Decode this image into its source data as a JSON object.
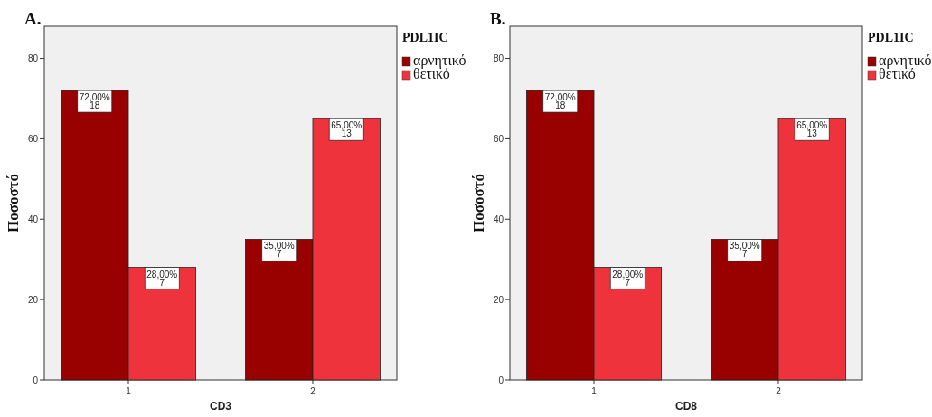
{
  "chart_data": [
    {
      "type": "bar",
      "title": "A.",
      "xlabel": "CD3",
      "ylabel": "Ποσοστό",
      "legend_title": "PDL1IC",
      "legend": "right",
      "categories": [
        "1",
        "2"
      ],
      "ylim": [
        0,
        88
      ],
      "yticks": [
        0,
        20,
        40,
        60,
        80
      ],
      "series": [
        {
          "name": "αρνητικό",
          "color": "#990000",
          "values": [
            72,
            35
          ],
          "value_labels": [
            "72,00%\n18",
            "35,00%\n7"
          ]
        },
        {
          "name": "θετικό",
          "color": "#ee333d",
          "values": [
            28,
            65
          ],
          "value_labels": [
            "28,00%\n7",
            "65,00%\n13"
          ]
        }
      ]
    },
    {
      "type": "bar",
      "title": "B.",
      "xlabel": "CD8",
      "ylabel": "Ποσοστό",
      "legend_title": "PDL1IC",
      "legend": "right",
      "categories": [
        "1",
        "2"
      ],
      "ylim": [
        0,
        88
      ],
      "yticks": [
        0,
        20,
        40,
        60,
        80
      ],
      "series": [
        {
          "name": "αρνητικό",
          "color": "#990000",
          "values": [
            72,
            35
          ],
          "value_labels": [
            "72,00%\n18",
            "35,00%\n7"
          ]
        },
        {
          "name": "θετικό",
          "color": "#ee333d",
          "values": [
            28,
            65
          ],
          "value_labels": [
            "28,00%\n7",
            "65,00%\n13"
          ]
        }
      ]
    }
  ]
}
